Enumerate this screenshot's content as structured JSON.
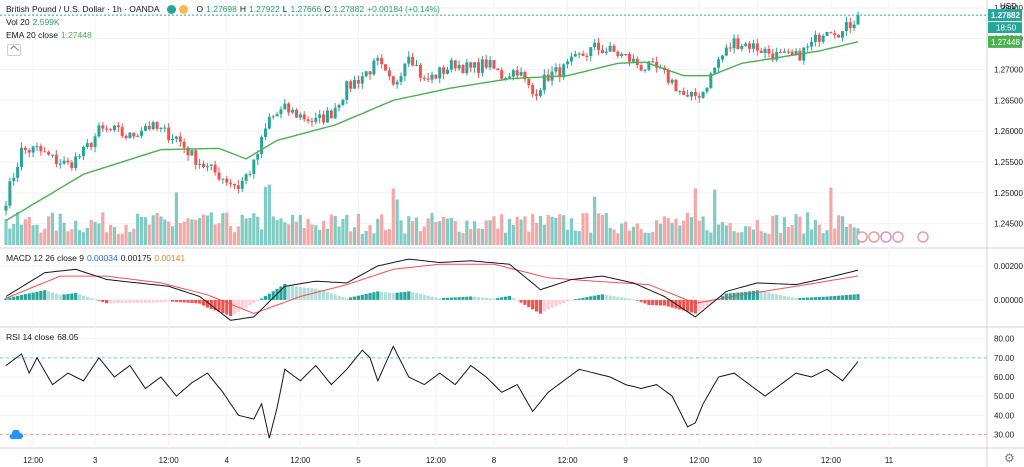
{
  "header": {
    "symbol": "British Pound / U.S. Dollar · 1h · OANDA",
    "ohlc": {
      "o_label": "O",
      "o": "1.27698",
      "h_label": "H",
      "h": "1.27922",
      "l_label": "L",
      "l": "1.27666",
      "c_label": "C",
      "c": "1.27882",
      "change": "+0.00184 (+0.14%)"
    },
    "vol_label": "Vol 20",
    "vol_value": "2.599K",
    "ema_label": "EMA 20 close",
    "ema_value": "1.27448",
    "macd_label": "MACD 12 26 close 9",
    "macd_values": [
      "0.00034",
      "0.00175",
      "0.00141"
    ],
    "rsi_label": "RSI 14 close",
    "rsi_value": "68.05"
  },
  "price_axis": {
    "currency": "USD",
    "current_price": "1.27882",
    "countdown": "18:50",
    "second_marker": "1.27448"
  },
  "colors": {
    "up": "#26a69a",
    "down": "#ef5350",
    "ema": "#4caf50",
    "macd_line": "#131722",
    "signal_line": "#ef5350",
    "rsi_line": "#131722",
    "grid": "#f0f3fa",
    "axis_text": "#131722"
  },
  "chart_data": [
    {
      "type": "candlestick",
      "title": "British Pound / U.S. Dollar · 1h · OANDA",
      "ylim": [
        1.2425,
        1.2803
      ],
      "yticks": [
        "1.28000",
        "1.27500",
        "1.27000",
        "1.26500",
        "1.26000",
        "1.25500",
        "1.25000",
        "1.24500"
      ],
      "x_labels": [
        "12:00",
        "3",
        "12:00",
        "4",
        "12:00",
        "5",
        "12:00",
        "8",
        "12:00",
        "9",
        "12:00",
        "10",
        "12:00",
        "11"
      ],
      "close_anchors": [
        [
          0,
          1.249
        ],
        [
          4,
          1.2568
        ],
        [
          8,
          1.257
        ],
        [
          12,
          1.2555
        ],
        [
          16,
          1.2545
        ],
        [
          20,
          1.2565
        ],
        [
          24,
          1.26
        ],
        [
          28,
          1.26
        ],
        [
          32,
          1.259
        ],
        [
          36,
          1.261
        ],
        [
          40,
          1.26
        ],
        [
          44,
          1.259
        ],
        [
          48,
          1.256
        ],
        [
          52,
          1.254
        ],
        [
          56,
          1.2525
        ],
        [
          60,
          1.251
        ],
        [
          64,
          1.2545
        ],
        [
          68,
          1.262
        ],
        [
          72,
          1.2635
        ],
        [
          76,
          1.2625
        ],
        [
          80,
          1.2615
        ],
        [
          84,
          1.263
        ],
        [
          88,
          1.267
        ],
        [
          92,
          1.269
        ],
        [
          96,
          1.271
        ],
        [
          100,
          1.267
        ],
        [
          104,
          1.273
        ],
        [
          108,
          1.268
        ],
        [
          112,
          1.2695
        ],
        [
          116,
          1.271
        ],
        [
          120,
          1.27
        ],
        [
          124,
          1.271
        ],
        [
          128,
          1.269
        ],
        [
          132,
          1.27
        ],
        [
          136,
          1.266
        ],
        [
          140,
          1.269
        ],
        [
          144,
          1.27
        ],
        [
          148,
          1.272
        ],
        [
          152,
          1.2735
        ],
        [
          156,
          1.273
        ],
        [
          160,
          1.272
        ],
        [
          164,
          1.2705
        ],
        [
          168,
          1.27
        ],
        [
          172,
          1.268
        ],
        [
          176,
          1.265
        ],
        [
          180,
          1.2665
        ],
        [
          184,
          1.2715
        ],
        [
          188,
          1.2745
        ],
        [
          192,
          1.274
        ],
        [
          196,
          1.273
        ],
        [
          200,
          1.272
        ],
        [
          204,
          1.272
        ],
        [
          208,
          1.274
        ],
        [
          212,
          1.277
        ],
        [
          216,
          1.276
        ],
        [
          220,
          1.2788
        ]
      ],
      "ema_anchors": [
        [
          0,
          1.2455
        ],
        [
          20,
          1.253
        ],
        [
          40,
          1.257
        ],
        [
          55,
          1.2572
        ],
        [
          62,
          1.2555
        ],
        [
          70,
          1.2585
        ],
        [
          85,
          1.261
        ],
        [
          100,
          1.265
        ],
        [
          115,
          1.267
        ],
        [
          130,
          1.2685
        ],
        [
          145,
          1.269
        ],
        [
          158,
          1.271
        ],
        [
          165,
          1.2712
        ],
        [
          175,
          1.269
        ],
        [
          182,
          1.269
        ],
        [
          190,
          1.271
        ],
        [
          200,
          1.272
        ],
        [
          210,
          1.273
        ],
        [
          220,
          1.2745
        ]
      ]
    },
    {
      "type": "bar",
      "title": "Vol 20",
      "series": [
        {
          "name": "Vol 20",
          "last_value": "2.599K"
        }
      ]
    },
    {
      "type": "line",
      "title": "MACD 12 26 close 9",
      "ylim": [
        -0.0013,
        0.0027
      ],
      "yticks": [
        "0.00200",
        "0.00000"
      ],
      "macd_anchors": [
        [
          0,
          0.0002
        ],
        [
          10,
          0.0016
        ],
        [
          18,
          0.0018
        ],
        [
          26,
          0.0012
        ],
        [
          34,
          0.001
        ],
        [
          42,
          0.0008
        ],
        [
          50,
          0.0002
        ],
        [
          58,
          -0.0012
        ],
        [
          64,
          -0.001
        ],
        [
          72,
          0.0008
        ],
        [
          80,
          0.0011
        ],
        [
          88,
          0.001
        ],
        [
          96,
          0.002
        ],
        [
          104,
          0.0024
        ],
        [
          112,
          0.0022
        ],
        [
          120,
          0.0023
        ],
        [
          130,
          0.0021
        ],
        [
          138,
          0.0006
        ],
        [
          146,
          0.0012
        ],
        [
          154,
          0.0014
        ],
        [
          162,
          0.001
        ],
        [
          170,
          0.0002
        ],
        [
          178,
          -0.001
        ],
        [
          186,
          0.0005
        ],
        [
          194,
          0.001
        ],
        [
          204,
          0.0009
        ],
        [
          212,
          0.0013
        ],
        [
          220,
          0.00175
        ]
      ],
      "signal_anchors": [
        [
          0,
          0.0001
        ],
        [
          14,
          0.0014
        ],
        [
          26,
          0.0014
        ],
        [
          40,
          0.001
        ],
        [
          52,
          0.0003
        ],
        [
          64,
          -0.0008
        ],
        [
          76,
          0.0002
        ],
        [
          88,
          0.0009
        ],
        [
          100,
          0.0018
        ],
        [
          112,
          0.0021
        ],
        [
          126,
          0.0021
        ],
        [
          140,
          0.0013
        ],
        [
          152,
          0.0011
        ],
        [
          166,
          0.0009
        ],
        [
          178,
          -0.0002
        ],
        [
          190,
          0.0003
        ],
        [
          204,
          0.0008
        ],
        [
          220,
          0.00141
        ]
      ]
    },
    {
      "type": "line",
      "title": "RSI 14 close",
      "ylim": [
        25,
        84
      ],
      "yticks": [
        "80.00",
        "70.00",
        "60.00",
        "50.00",
        "40.00",
        "30.00"
      ],
      "bands": [
        70,
        30
      ],
      "rsi_anchors": [
        [
          0,
          66
        ],
        [
          4,
          72
        ],
        [
          6,
          62
        ],
        [
          8,
          70
        ],
        [
          12,
          56
        ],
        [
          16,
          62
        ],
        [
          20,
          58
        ],
        [
          24,
          70
        ],
        [
          28,
          60
        ],
        [
          32,
          66
        ],
        [
          36,
          54
        ],
        [
          40,
          60
        ],
        [
          44,
          50
        ],
        [
          48,
          57
        ],
        [
          52,
          62
        ],
        [
          56,
          52
        ],
        [
          60,
          40
        ],
        [
          64,
          38
        ],
        [
          66,
          46
        ],
        [
          68,
          28
        ],
        [
          70,
          44
        ],
        [
          72,
          64
        ],
        [
          76,
          58
        ],
        [
          80,
          66
        ],
        [
          84,
          56
        ],
        [
          88,
          64
        ],
        [
          92,
          74
        ],
        [
          94,
          70
        ],
        [
          96,
          58
        ],
        [
          100,
          76
        ],
        [
          104,
          60
        ],
        [
          108,
          56
        ],
        [
          112,
          62
        ],
        [
          116,
          56
        ],
        [
          120,
          66
        ],
        [
          124,
          60
        ],
        [
          128,
          52
        ],
        [
          132,
          56
        ],
        [
          136,
          42
        ],
        [
          140,
          52
        ],
        [
          144,
          58
        ],
        [
          148,
          64
        ],
        [
          152,
          62
        ],
        [
          156,
          60
        ],
        [
          160,
          56
        ],
        [
          164,
          54
        ],
        [
          168,
          56
        ],
        [
          172,
          50
        ],
        [
          176,
          34
        ],
        [
          178,
          36
        ],
        [
          180,
          46
        ],
        [
          184,
          60
        ],
        [
          188,
          62
        ],
        [
          192,
          56
        ],
        [
          196,
          50
        ],
        [
          200,
          56
        ],
        [
          204,
          62
        ],
        [
          208,
          60
        ],
        [
          212,
          64
        ],
        [
          216,
          58
        ],
        [
          220,
          68
        ]
      ]
    }
  ]
}
